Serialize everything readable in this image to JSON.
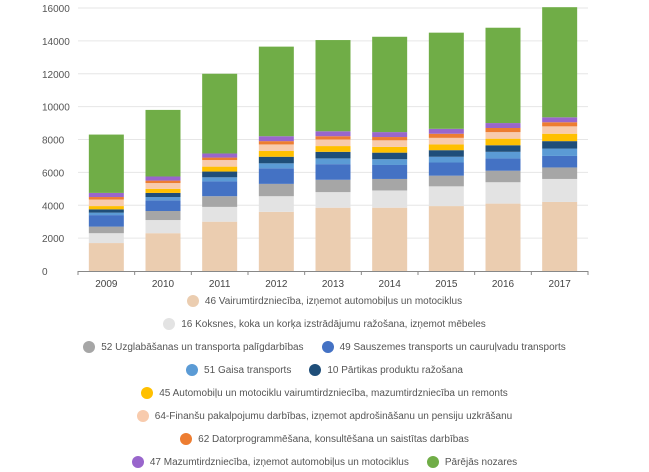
{
  "chart_data": {
    "type": "bar",
    "stacked": true,
    "title": "",
    "xlabel": "",
    "ylabel": "",
    "ylim": [
      0,
      16000
    ],
    "yticks": [
      0,
      2000,
      4000,
      6000,
      8000,
      10000,
      12000,
      14000,
      16000
    ],
    "grid": true,
    "legend_position": "bottom",
    "categories": [
      "2009",
      "2010",
      "2011",
      "2012",
      "2013",
      "2014",
      "2015",
      "2016",
      "2017"
    ],
    "series": [
      {
        "name": "46 Vairumtirdzniecība, izņemot automobiļus un motociklus",
        "color": "#ebcdb0",
        "values": [
          1700,
          2300,
          3000,
          3600,
          3850,
          3850,
          3950,
          4100,
          4200
        ]
      },
      {
        "name": "16 Koksnes, koka un korķa izstrādājumu ražošana, izņemot mēbeles",
        "color": "#e3e3e3",
        "values": [
          600,
          800,
          900,
          950,
          950,
          1050,
          1200,
          1300,
          1400
        ]
      },
      {
        "name": "52 Uzglabāšanas un transporta palīgdarbības",
        "color": "#a6a6a6",
        "values": [
          400,
          550,
          650,
          750,
          750,
          700,
          650,
          700,
          700
        ]
      },
      {
        "name": "49 Sauszemes transports un cauruļvadu transports",
        "color": "#4472c4",
        "values": [
          700,
          650,
          900,
          950,
          950,
          850,
          800,
          750,
          700
        ]
      },
      {
        "name": "51 Gaisa transports",
        "color": "#5b9bd5",
        "values": [
          150,
          200,
          250,
          300,
          350,
          350,
          350,
          400,
          450
        ]
      },
      {
        "name": "10 Pārtikas produktu ražošana",
        "color": "#1f4e79",
        "values": [
          200,
          250,
          350,
          400,
          400,
          400,
          400,
          400,
          450
        ]
      },
      {
        "name": "45 Automobiļu un motociklu vairumtirdzniecība, mazumtirdzniecība un remonts",
        "color": "#ffc000",
        "values": [
          200,
          250,
          300,
          350,
          350,
          350,
          350,
          400,
          450
        ]
      },
      {
        "name": "64-Finanšu pakalpojumu darbības, izņemot apdrošināšanu un pensiju uzkrāšanu",
        "color": "#f8cbad",
        "values": [
          400,
          350,
          400,
          400,
          400,
          400,
          400,
          400,
          450
        ]
      },
      {
        "name": "62 Datorprogrammēšana, konsultēšana un saistītas darbības",
        "color": "#ed7d31",
        "values": [
          150,
          150,
          150,
          200,
          200,
          200,
          250,
          250,
          250
        ]
      },
      {
        "name": "47 Mazumtirdzniecība, izņemot automobiļus un motociklus",
        "color": "#9966cc",
        "values": [
          250,
          250,
          250,
          300,
          300,
          300,
          300,
          300,
          300
        ]
      },
      {
        "name": "Pārējās nozares",
        "color": "#70ad47",
        "values": [
          3550,
          4050,
          4850,
          5450,
          5550,
          5800,
          5850,
          5800,
          6700
        ]
      }
    ]
  }
}
